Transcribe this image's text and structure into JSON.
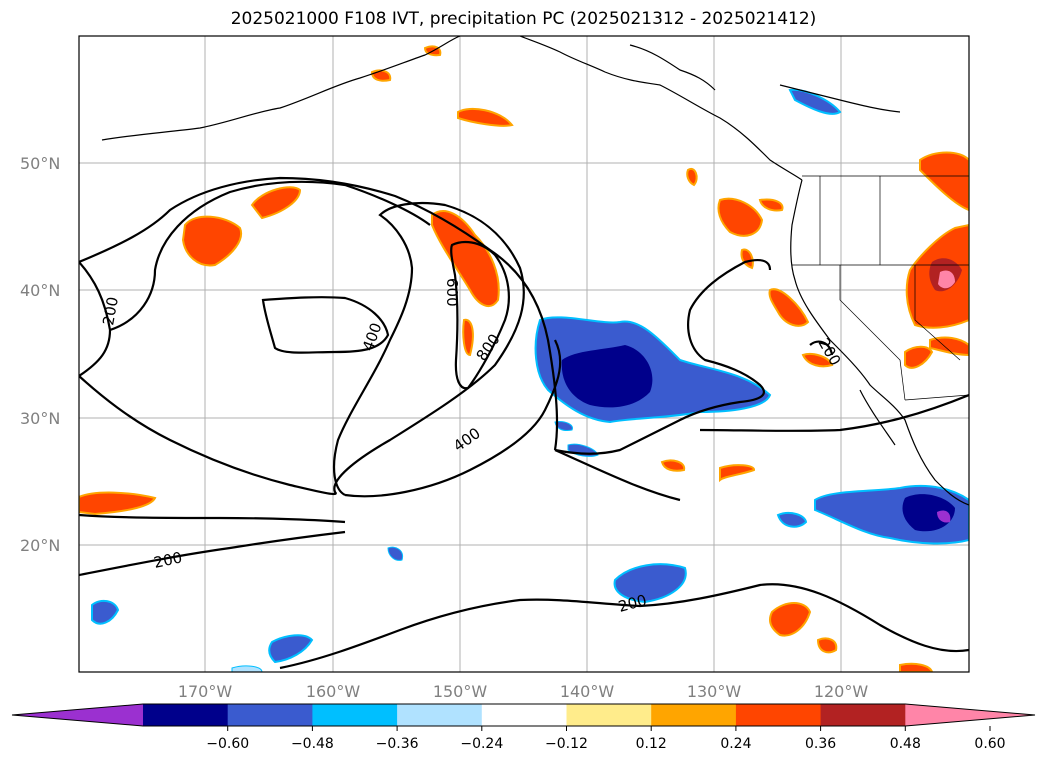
{
  "title": "2025021000 F108 IVT, precipitation PC (2025021312 - 2025021412)",
  "map": {
    "lat_labels": [
      "50°N",
      "40°N",
      "30°N",
      "20°N"
    ],
    "lon_labels": [
      "170°W",
      "160°W",
      "150°W",
      "140°W",
      "130°W",
      "120°W"
    ],
    "contour_labels": [
      "200",
      "400",
      "600",
      "800",
      "400",
      "200",
      "200",
      "200"
    ]
  },
  "colorbar": {
    "colors": [
      "#9b30d0",
      "#00008b",
      "#3a5bcf",
      "#00bfff",
      "#b0e2ff",
      "#ffffff",
      "#ffec8b",
      "#ffa500",
      "#ff4500",
      "#b22222",
      "#ff85a8"
    ],
    "tick_labels": [
      "−0.60",
      "−0.48",
      "−0.36",
      "−0.24",
      "−0.12",
      "0.12",
      "0.24",
      "0.36",
      "0.48",
      "0.60"
    ]
  }
}
